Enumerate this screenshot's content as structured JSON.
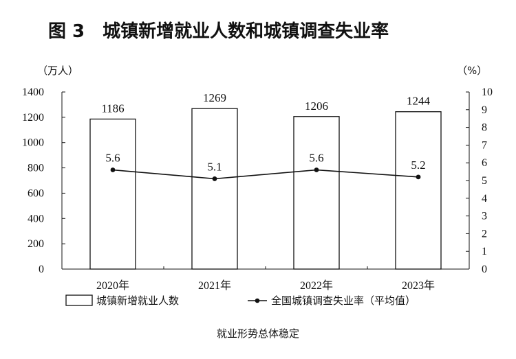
{
  "title": "图 3　城镇新增就业人数和城镇调查失业率",
  "caption": "就业形势总体稳定",
  "chart_data": {
    "type": "bar",
    "categories": [
      "2020年",
      "2021年",
      "2022年",
      "2023年"
    ],
    "series": [
      {
        "name": "城镇新增就业人数",
        "type": "bar",
        "axis": "left",
        "values": [
          1186,
          1269,
          1206,
          1244
        ]
      },
      {
        "name": "全国城镇调查失业率（平均值）",
        "type": "line",
        "axis": "right",
        "values": [
          5.6,
          5.1,
          5.6,
          5.2
        ]
      }
    ],
    "y_left": {
      "unit_label": "（万人）",
      "ylim": [
        0,
        1400
      ],
      "ticks": [
        "0",
        "200",
        "400",
        "600",
        "800",
        "1000",
        "1200",
        "1400"
      ]
    },
    "y_right": {
      "unit_label": "（%）",
      "ylim": [
        0,
        10
      ],
      "ticks": [
        "0",
        "1",
        "2",
        "3",
        "4",
        "5",
        "6",
        "7",
        "8",
        "9",
        "10"
      ]
    },
    "grid": false,
    "legend_position": "bottom",
    "colors": {
      "bar_fill": "#ffffff",
      "bar_stroke": "#111111",
      "line": "#111111"
    }
  }
}
